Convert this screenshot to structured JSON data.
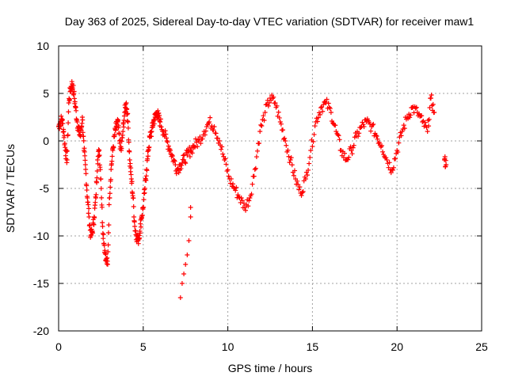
{
  "chart_data": {
    "type": "scatter",
    "title": "Day 363 of 2025, Sidereal Day-to-day VTEC variation (SDTVAR) for receiver maw1",
    "xlabel": "GPS time / hours",
    "ylabel": "SDTVAR / TECUs",
    "xlim": [
      0,
      25
    ],
    "ylim": [
      -20,
      10
    ],
    "xticks": [
      0,
      5,
      10,
      15,
      20,
      25
    ],
    "yticks": [
      -20,
      -15,
      -10,
      -5,
      0,
      5,
      10
    ],
    "grid": true,
    "marker": "+",
    "series": [
      {
        "name": "SDTVAR",
        "color": "#ff0000",
        "x": [
          0.0,
          0.1,
          0.2,
          0.3,
          0.4,
          0.5,
          0.6,
          0.7,
          0.8,
          0.9,
          1.0,
          1.1,
          1.2,
          1.3,
          1.4,
          1.5,
          1.6,
          1.7,
          1.8,
          1.9,
          2.0,
          2.1,
          2.2,
          2.3,
          2.4,
          2.5,
          2.6,
          2.7,
          2.8,
          2.9,
          3.0,
          3.1,
          3.2,
          3.3,
          3.4,
          3.5,
          3.6,
          3.7,
          3.8,
          3.9,
          4.0,
          4.1,
          4.2,
          4.3,
          4.4,
          4.5,
          4.6,
          4.7,
          4.8,
          4.9,
          5.0,
          5.1,
          5.2,
          5.3,
          5.4,
          5.5,
          5.6,
          5.7,
          5.8,
          5.9,
          6.0,
          6.2,
          6.4,
          6.6,
          6.8,
          7.0,
          7.2,
          7.4,
          7.6,
          7.8,
          8.0,
          8.3,
          8.6,
          8.9,
          9.2,
          9.5,
          9.8,
          10.1,
          10.4,
          10.7,
          11.0,
          11.3,
          11.6,
          11.9,
          12.2,
          12.5,
          12.8,
          13.1,
          13.4,
          13.7,
          14.0,
          14.3,
          14.6,
          14.9,
          15.2,
          15.5,
          15.8,
          16.1,
          16.4,
          16.7,
          17.0,
          17.3,
          17.6,
          17.9,
          18.2,
          18.5,
          18.8,
          19.1,
          19.4,
          19.7,
          20.0,
          20.3,
          20.6,
          20.9,
          21.2,
          21.5,
          21.8,
          22.0,
          22.2,
          22.8,
          22.9
        ],
        "y": [
          1.5,
          2.0,
          2.3,
          1.0,
          -1.0,
          -2.0,
          4.0,
          5.5,
          6.0,
          5.0,
          3.5,
          2.0,
          1.0,
          0.5,
          2.5,
          -1.0,
          -3.0,
          -6.0,
          -8.0,
          -10.0,
          -9.5,
          -8.0,
          -6.0,
          -2.0,
          -1.0,
          -4.0,
          -9.0,
          -11.0,
          -12.5,
          -13.0,
          -6.0,
          -3.0,
          -1.0,
          0.5,
          1.5,
          2.0,
          0.0,
          -1.0,
          1.0,
          3.0,
          4.0,
          2.0,
          -2.0,
          -4.0,
          -6.0,
          -9.0,
          -10.0,
          -10.5,
          -9.5,
          -8.0,
          -7.0,
          -5.0,
          -3.0,
          -1.0,
          0.5,
          1.0,
          2.0,
          2.5,
          3.0,
          2.5,
          2.0,
          1.0,
          0.0,
          -1.0,
          -2.0,
          -3.0,
          -2.5,
          -2.0,
          -1.5,
          -1.0,
          -0.5,
          0.0,
          1.0,
          2.0,
          1.5,
          0.0,
          -2.0,
          -4.0,
          -5.0,
          -6.0,
          -7.0,
          -6.0,
          -3.0,
          1.0,
          3.0,
          4.5,
          4.0,
          2.0,
          0.0,
          -2.0,
          -4.0,
          -5.5,
          -4.0,
          -1.0,
          2.0,
          3.5,
          4.0,
          3.0,
          1.0,
          -1.0,
          -2.0,
          -1.0,
          0.5,
          1.5,
          2.0,
          1.5,
          0.5,
          -0.5,
          -2.0,
          -3.0,
          -1.0,
          1.0,
          2.5,
          3.5,
          3.0,
          2.0,
          1.0,
          4.5,
          3.0,
          -2.0,
          -2.5
        ],
        "extra_points": [
          {
            "x": 7.2,
            "y": -16.5
          },
          {
            "x": 7.3,
            "y": -15.0
          },
          {
            "x": 7.4,
            "y": -14.0
          },
          {
            "x": 7.5,
            "y": -13.0
          },
          {
            "x": 7.6,
            "y": -12.0
          },
          {
            "x": 7.7,
            "y": -10.5
          },
          {
            "x": 7.8,
            "y": -8.0
          },
          {
            "x": 7.8,
            "y": -7.0
          }
        ]
      }
    ]
  }
}
